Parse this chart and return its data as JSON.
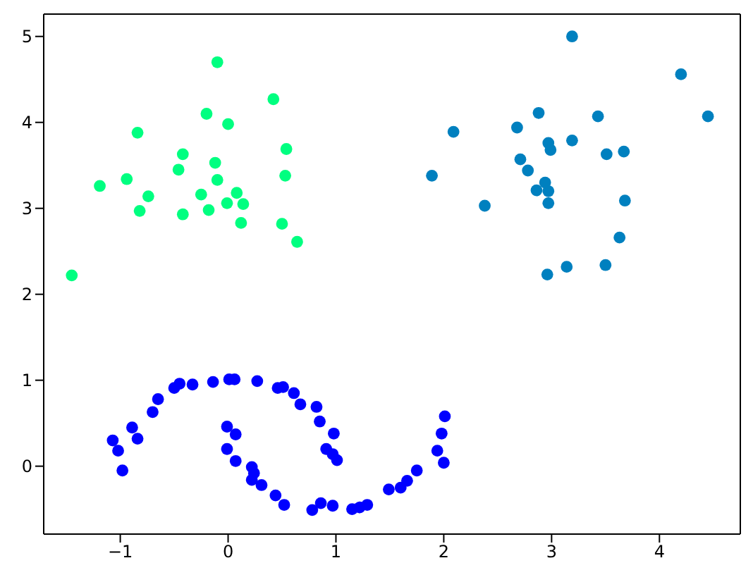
{
  "chart_data": {
    "type": "scatter",
    "xlim": [
      -1.71,
      4.75
    ],
    "ylim": [
      -0.79,
      5.26
    ],
    "xticks": [
      -1,
      0,
      1,
      2,
      3,
      4
    ],
    "yticks": [
      0,
      1,
      2,
      3,
      4,
      5
    ],
    "legend": false,
    "marker": "circle",
    "series": [
      {
        "color": "#00ff80",
        "x": [
          -0.1,
          0.42,
          -0.2,
          0.0,
          -0.84,
          -0.42,
          0.54,
          -0.46,
          -0.12,
          -0.1,
          -1.19,
          -0.94,
          0.53,
          -0.74,
          -0.25,
          0.08,
          -0.01,
          0.14,
          -0.82,
          -0.42,
          -0.18,
          0.12,
          0.5,
          0.64,
          -1.45
        ],
        "values": [
          4.7,
          4.27,
          4.1,
          3.98,
          3.88,
          3.63,
          3.69,
          3.45,
          3.53,
          3.33,
          3.26,
          3.34,
          3.38,
          3.14,
          3.16,
          3.18,
          3.06,
          3.05,
          2.97,
          2.93,
          2.98,
          2.83,
          2.82,
          2.61,
          2.22
        ]
      },
      {
        "color": "#0080bf",
        "x": [
          3.19,
          4.2,
          4.45,
          2.88,
          3.43,
          2.09,
          2.68,
          2.97,
          2.99,
          3.19,
          3.51,
          3.67,
          2.71,
          2.78,
          1.89,
          2.94,
          2.86,
          2.97,
          2.38,
          2.97,
          3.68,
          3.63,
          3.14,
          2.96,
          3.5
        ],
        "values": [
          5.0,
          4.56,
          4.07,
          4.11,
          4.07,
          3.89,
          3.94,
          3.76,
          3.68,
          3.79,
          3.63,
          3.66,
          3.57,
          3.44,
          3.38,
          3.3,
          3.21,
          3.2,
          3.03,
          3.06,
          3.09,
          2.66,
          2.32,
          2.23,
          2.34
        ]
      },
      {
        "color": "#0000ff",
        "x": [
          -1.07,
          -1.02,
          -0.98,
          -0.89,
          -0.84,
          -0.7,
          -0.65,
          -0.5,
          -0.45,
          -0.33,
          -0.14,
          0.01,
          0.06,
          0.27,
          0.46,
          0.51,
          0.61,
          0.67,
          0.82,
          0.85,
          0.98,
          0.91,
          0.97,
          1.01,
          -0.01,
          0.07,
          -0.01,
          0.07,
          0.22,
          0.24,
          0.22,
          0.31,
          0.44,
          0.52,
          0.78,
          0.86,
          0.97,
          1.15,
          1.22,
          1.29,
          1.49,
          1.6,
          1.66,
          1.75,
          2.0,
          1.94,
          1.98,
          2.01
        ],
        "values": [
          0.3,
          0.18,
          -0.05,
          0.45,
          0.32,
          0.63,
          0.78,
          0.91,
          0.96,
          0.95,
          0.98,
          1.01,
          1.01,
          0.99,
          0.91,
          0.92,
          0.85,
          0.72,
          0.69,
          0.52,
          0.38,
          0.2,
          0.14,
          0.07,
          0.46,
          0.37,
          0.2,
          0.06,
          -0.01,
          -0.08,
          -0.16,
          -0.22,
          -0.34,
          -0.45,
          -0.51,
          -0.43,
          -0.46,
          -0.5,
          -0.48,
          -0.45,
          -0.27,
          -0.25,
          -0.17,
          -0.05,
          0.04,
          0.18,
          0.38,
          0.58
        ]
      }
    ]
  }
}
